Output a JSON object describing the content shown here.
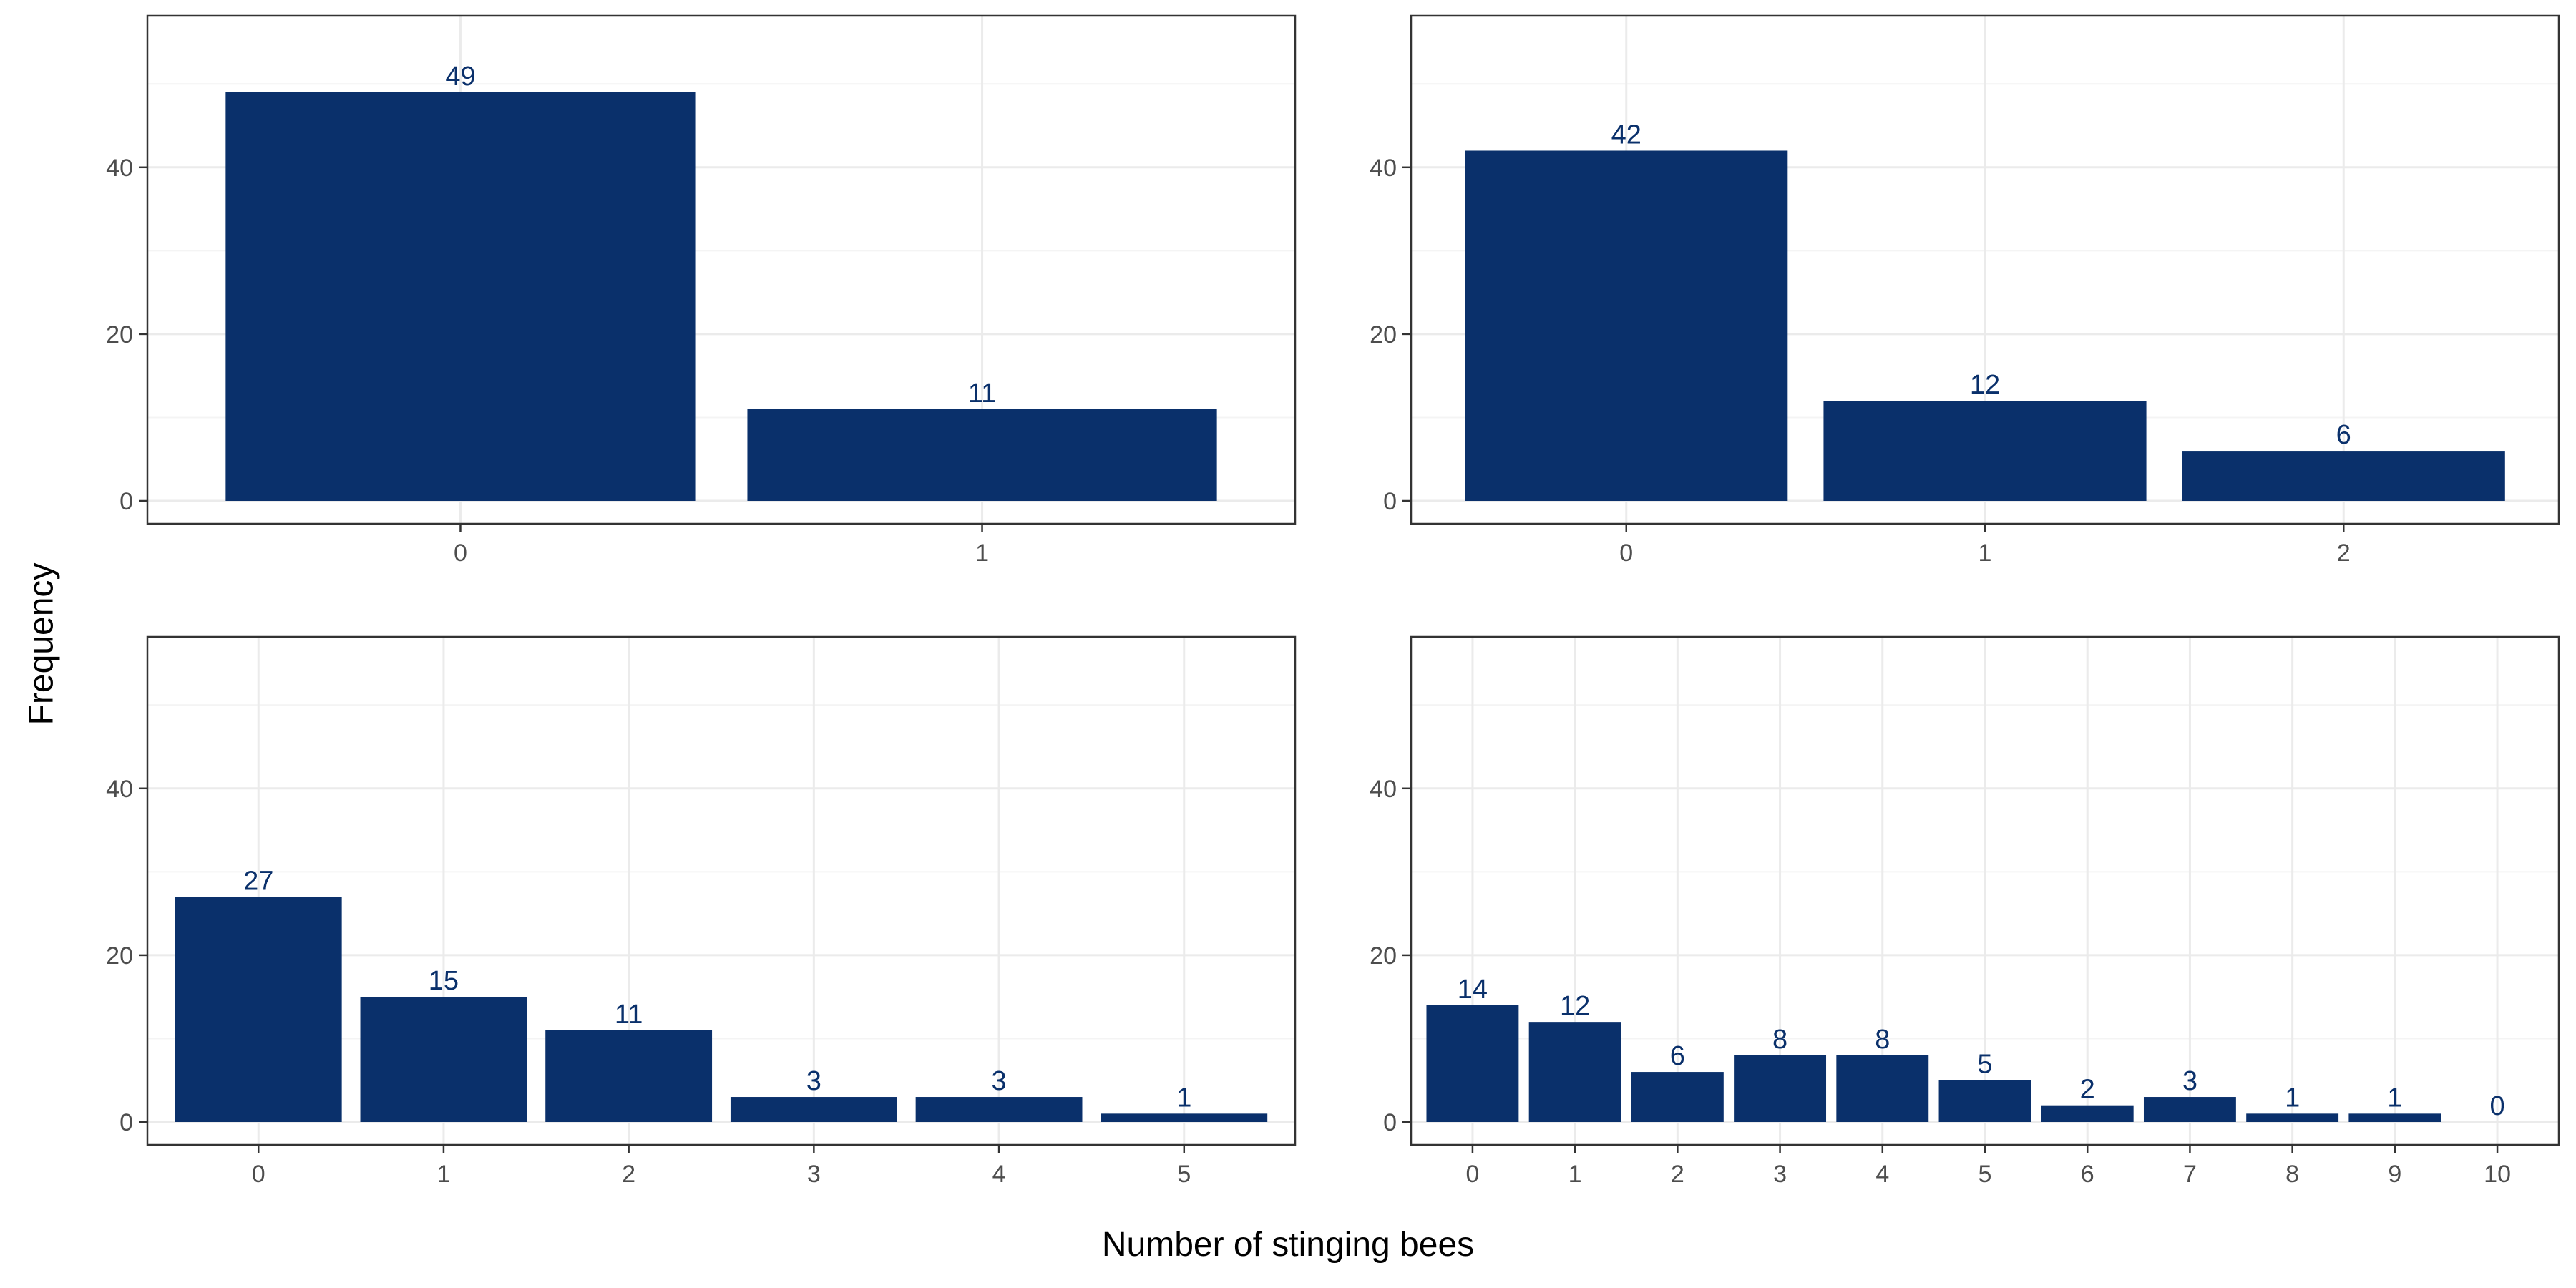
{
  "xlabel": "Number of stinging bees",
  "ylabel": "Frequency",
  "colors": {
    "bar": "#0a306b",
    "label": "#0a306b",
    "grid_major": "#ebebeb",
    "grid_minor": "#f4f4f4",
    "panel_border": "#333333",
    "tick_text": "#4d4d4d"
  },
  "chart_data": [
    {
      "type": "bar",
      "categories": [
        "0",
        "1"
      ],
      "values": [
        49,
        11
      ],
      "data_labels": [
        "49",
        "11"
      ],
      "ylim": [
        0,
        58
      ],
      "yticks": [
        0,
        20,
        40
      ],
      "grid": true
    },
    {
      "type": "bar",
      "categories": [
        "0",
        "1",
        "2"
      ],
      "values": [
        42,
        12,
        6
      ],
      "data_labels": [
        "42",
        "12",
        "6"
      ],
      "ylim": [
        0,
        58
      ],
      "yticks": [
        0,
        20,
        40
      ],
      "grid": true
    },
    {
      "type": "bar",
      "categories": [
        "0",
        "1",
        "2",
        "3",
        "4",
        "5"
      ],
      "values": [
        27,
        15,
        11,
        3,
        3,
        1
      ],
      "data_labels": [
        "27",
        "15",
        "11",
        "3",
        "3",
        "1"
      ],
      "ylim": [
        0,
        58
      ],
      "yticks": [
        0,
        20,
        40
      ],
      "grid": true
    },
    {
      "type": "bar",
      "categories": [
        "0",
        "1",
        "2",
        "3",
        "4",
        "5",
        "6",
        "7",
        "8",
        "9",
        "10"
      ],
      "values": [
        14,
        12,
        6,
        8,
        8,
        5,
        2,
        3,
        1,
        1,
        0
      ],
      "data_labels": [
        "14",
        "12",
        "6",
        "8",
        "8",
        "5",
        "2",
        "3",
        "1",
        "1",
        "0"
      ],
      "ylim": [
        0,
        58
      ],
      "yticks": [
        0,
        20,
        40
      ],
      "grid": true
    }
  ]
}
